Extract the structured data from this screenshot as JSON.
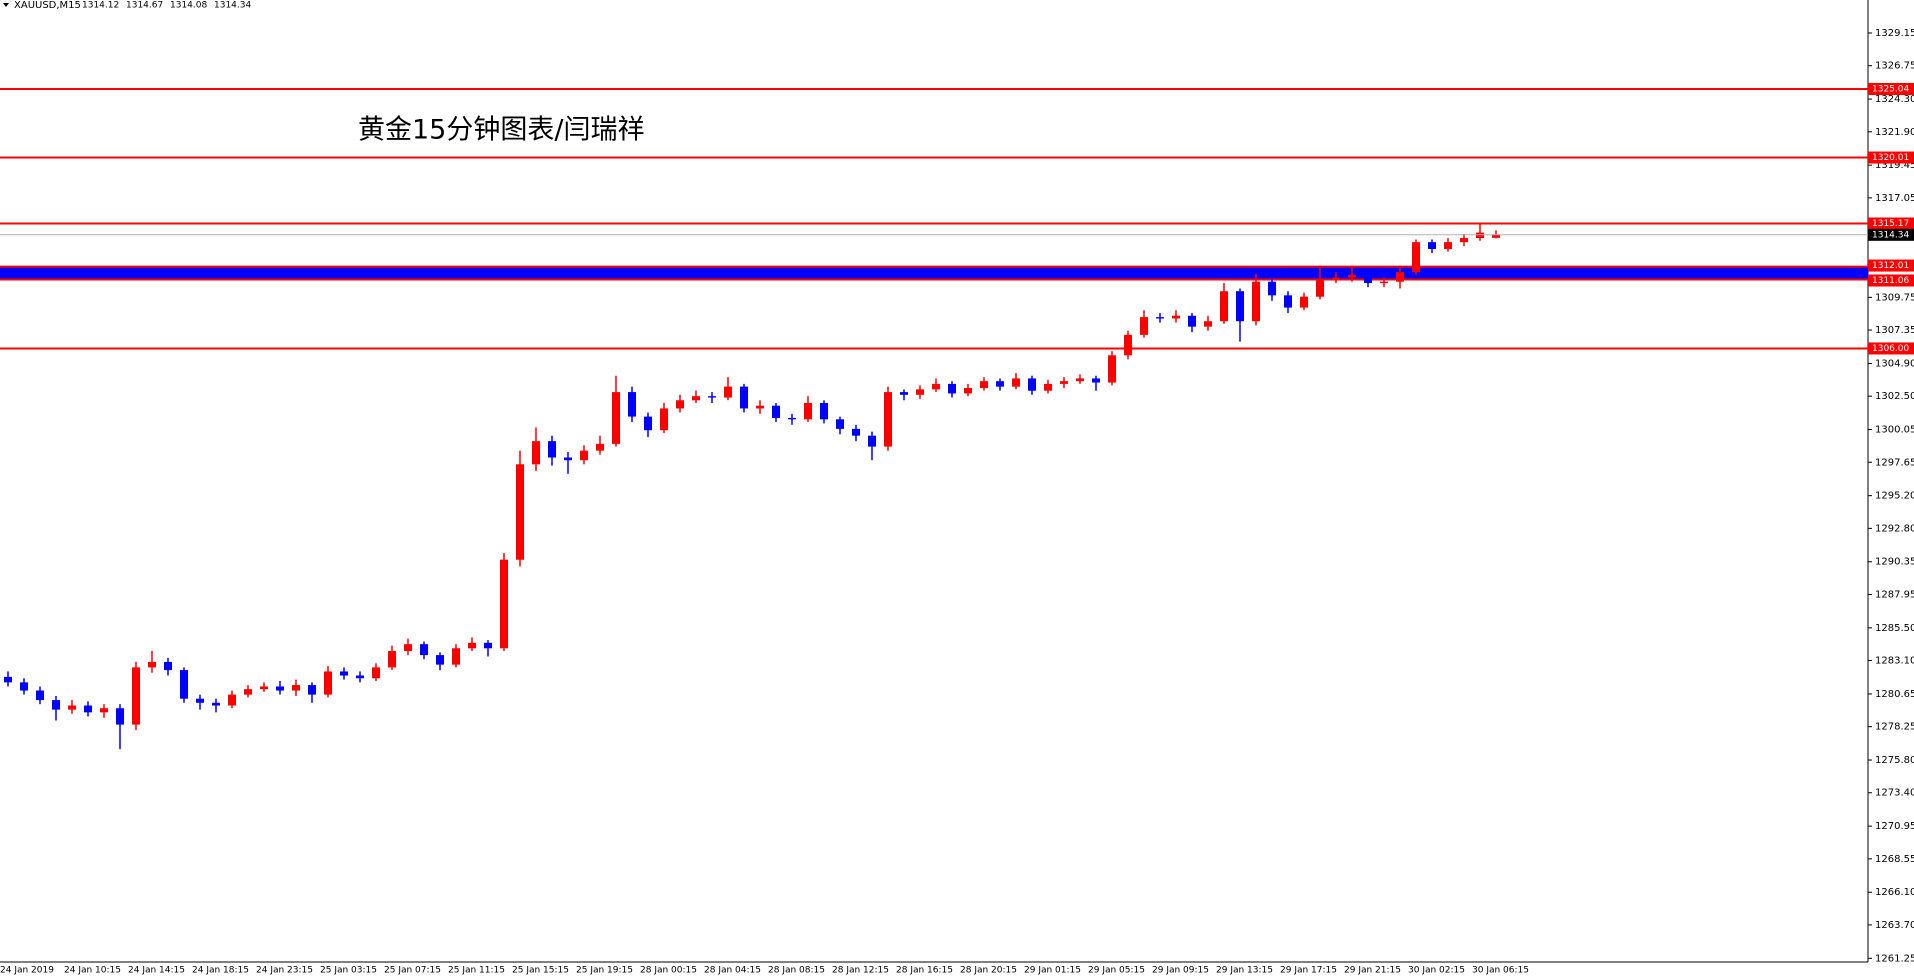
{
  "chart_data": {
    "type": "candlestick",
    "symbol": "XAUUSD,M15",
    "annotation": "黄金15分钟图表/闫瑞祥",
    "categories": [
      "24 Jan 2019",
      null,
      null,
      null,
      "24 Jan 10:15",
      null,
      null,
      null,
      "24 Jan 14:15",
      null,
      null,
      null,
      "24 Jan 18:15",
      null,
      null,
      null,
      "24 Jan 23:15",
      null,
      null,
      null,
      "25 Jan 03:15",
      null,
      null,
      null,
      "25 Jan 07:15",
      null,
      null,
      null,
      "25 Jan 11:15",
      null,
      null,
      null,
      "25 Jan 15:15",
      null,
      null,
      null,
      "25 Jan 19:15",
      null,
      null,
      null,
      "28 Jan 00:15",
      null,
      null,
      null,
      "28 Jan 04:15",
      null,
      null,
      null,
      "28 Jan 08:15",
      null,
      null,
      null,
      "28 Jan 12:15",
      null,
      null,
      null,
      "28 Jan 16:15",
      null,
      null,
      null,
      "28 Jan 20:15",
      null,
      null,
      null,
      "29 Jan 01:15",
      null,
      null,
      null,
      "29 Jan 05:15",
      null,
      null,
      null,
      "29 Jan 09:15",
      null,
      null,
      null,
      "29 Jan 13:15",
      null,
      null,
      null,
      "29 Jan 17:15",
      null,
      null,
      null,
      "29 Jan 21:15",
      null,
      null,
      null,
      "30 Jan 02:15",
      null,
      null,
      null,
      "30 Jan 06:15",
      null
    ],
    "candles": {
      "open": [
        1281.9,
        1281.5,
        1280.9,
        1280.2,
        1279.5,
        1279.8,
        1279.3,
        1279.6,
        1278.4,
        1282.6,
        1283,
        1282.4,
        1280.3,
        1280,
        1279.8,
        1280.6,
        1281,
        1281.2,
        1280.9,
        1281.3,
        1280.6,
        1282.3,
        1282,
        1281.8,
        1282.6,
        1283.8,
        1284.3,
        1283.5,
        1282.8,
        1284,
        1284.4,
        1284,
        1290.5,
        1297.5,
        1299.2,
        1298,
        1297.8,
        1298.5,
        1299,
        1302.8,
        1301,
        1300,
        1301.6,
        1302.2,
        1302.5,
        1302.4,
        1303.2,
        1301.6,
        1301.8,
        1300.9,
        1300.8,
        1302,
        1300.8,
        1300.1,
        1299.6,
        1298.8,
        1302.8,
        1302.6,
        1303,
        1303.4,
        1302.7,
        1303.1,
        1303.6,
        1303.2,
        1303.8,
        1302.9,
        1303.4,
        1303.6,
        1303.8,
        1303.5,
        1305.5,
        1307,
        1308.3,
        1308.2,
        1308.4,
        1307.6,
        1308,
        1310.2,
        1308,
        1310.9,
        1309.9,
        1309,
        1309.8,
        1311,
        1311.2,
        1311.4,
        1310.8,
        1310.9,
        1311.6,
        1313.8,
        1313.3,
        1313.8,
        1314.1,
        1314.12
      ],
      "high": [
        1282.3,
        1281.8,
        1281.2,
        1280.5,
        1280.2,
        1280.1,
        1279.9,
        1279.9,
        1283,
        1283.8,
        1283.3,
        1282.6,
        1280.6,
        1280.3,
        1280.9,
        1281.3,
        1281.5,
        1281.6,
        1281.7,
        1281.5,
        1282.7,
        1282.6,
        1282.3,
        1282.9,
        1284.2,
        1284.7,
        1284.5,
        1283.7,
        1284.3,
        1284.8,
        1284.6,
        1291,
        1298.5,
        1300.2,
        1299.6,
        1298.4,
        1298.9,
        1299.6,
        1304,
        1303.2,
        1301.3,
        1302,
        1302.6,
        1302.9,
        1302.8,
        1303.9,
        1303.4,
        1302.2,
        1302,
        1301.2,
        1302.5,
        1302.2,
        1301,
        1300.4,
        1299.9,
        1303.2,
        1303,
        1303.3,
        1303.8,
        1303.6,
        1303.4,
        1303.9,
        1303.8,
        1304.2,
        1304,
        1303.7,
        1303.9,
        1304.1,
        1304,
        1305.8,
        1307.3,
        1308.8,
        1308.6,
        1308.8,
        1308.6,
        1308.4,
        1310.8,
        1310.4,
        1311.5,
        1311.1,
        1310.2,
        1310.1,
        1311.9,
        1311.6,
        1312,
        1311.6,
        1311.2,
        1311.9,
        1314,
        1314,
        1314.1,
        1314.4,
        1315.2,
        1314.67
      ],
      "low": [
        1281.2,
        1280.6,
        1279.9,
        1278.7,
        1279.2,
        1279,
        1278.9,
        1276.6,
        1278,
        1282.2,
        1282,
        1280,
        1279.5,
        1279.3,
        1279.6,
        1280.4,
        1280.8,
        1280.6,
        1280.5,
        1280,
        1280.4,
        1281.7,
        1281.5,
        1281.6,
        1282.4,
        1283.5,
        1283.2,
        1282.4,
        1282.6,
        1283.8,
        1283.4,
        1283.8,
        1290,
        1297,
        1297.4,
        1296.8,
        1297.5,
        1298.2,
        1298.8,
        1300.6,
        1299.5,
        1299.8,
        1301.3,
        1302,
        1302,
        1302.2,
        1301.3,
        1301.2,
        1300.6,
        1300.4,
        1300.6,
        1300.5,
        1299.7,
        1299.2,
        1297.8,
        1298.5,
        1302.2,
        1302.3,
        1302.8,
        1302.4,
        1302.5,
        1302.9,
        1302.9,
        1303,
        1302.6,
        1302.7,
        1303.1,
        1303.4,
        1302.9,
        1303.3,
        1305.2,
        1306.8,
        1307.9,
        1307.9,
        1307.2,
        1307.3,
        1307.8,
        1306.5,
        1307.7,
        1309.5,
        1308.6,
        1308.8,
        1309.6,
        1310.8,
        1310.9,
        1310.5,
        1310.5,
        1310.4,
        1311.4,
        1313,
        1313.1,
        1313.5,
        1313.9,
        1314.08
      ],
      "close": [
        1281.5,
        1280.9,
        1280.2,
        1279.5,
        1279.8,
        1279.3,
        1279.6,
        1278.4,
        1282.6,
        1283,
        1282.4,
        1280.3,
        1280,
        1279.8,
        1280.6,
        1281,
        1281.2,
        1280.9,
        1281.3,
        1280.6,
        1282.3,
        1282,
        1281.8,
        1282.6,
        1283.8,
        1284.3,
        1283.5,
        1282.8,
        1284,
        1284.4,
        1284,
        1290.5,
        1297.5,
        1299.2,
        1298,
        1297.8,
        1298.5,
        1299,
        1302.8,
        1301,
        1300,
        1301.6,
        1302.2,
        1302.5,
        1302.4,
        1303.2,
        1301.6,
        1301.8,
        1300.9,
        1300.8,
        1302,
        1300.8,
        1300.1,
        1299.6,
        1298.8,
        1302.8,
        1302.6,
        1303,
        1303.4,
        1302.7,
        1303.1,
        1303.6,
        1303.2,
        1303.8,
        1302.9,
        1303.4,
        1303.6,
        1303.8,
        1303.5,
        1305.5,
        1307,
        1308.3,
        1308.2,
        1308.4,
        1307.6,
        1308,
        1310.2,
        1308,
        1310.9,
        1309.9,
        1309,
        1309.8,
        1311,
        1311.2,
        1311.4,
        1310.8,
        1310.9,
        1311.6,
        1313.8,
        1313.3,
        1313.8,
        1314.1,
        1314.5,
        1314.34
      ]
    },
    "up_color": "#ff0000",
    "down_color": "#0000ff",
    "ylim": [
      1260.98,
      1331.57
    ],
    "yticks": [
      1261.25,
      {
        "value": 1263.7,
        "label": "1263.70"
      },
      {
        "value": 1266.1,
        "label": "1266.10"
      },
      1268.55,
      1270.95,
      {
        "value": 1273.4,
        "label": "1273.40"
      },
      {
        "value": 1275.8,
        "label": "1275.80"
      },
      1278.25,
      1280.65,
      {
        "value": 1283.1,
        "label": "1283.10"
      },
      {
        "value": 1285.5,
        "label": "1285.50"
      },
      1287.95,
      1290.35,
      {
        "value": 1292.8,
        "label": "1292.80"
      },
      {
        "value": 1295.2,
        "label": "1295.20"
      },
      1297.65,
      1300.05,
      {
        "value": 1302.5,
        "label": "1302.50"
      },
      {
        "value": 1304.9,
        "label": "1304.90"
      },
      1307.35,
      1309.75,
      1317.05,
      1319.45,
      {
        "value": 1321.9,
        "label": "1321.90"
      },
      {
        "value": 1324.3,
        "label": "1324.30"
      },
      1326.75,
      1329.15
    ],
    "levels": [
      1325.04,
      1320.01,
      1315.17,
      {
        "value": 1306,
        "label": "1306.00"
      }
    ],
    "level_color": "#ff0000",
    "zone": {
      "low": 1311.06,
      "high": 1312.01,
      "color": "#0000ff"
    }
  }
}
